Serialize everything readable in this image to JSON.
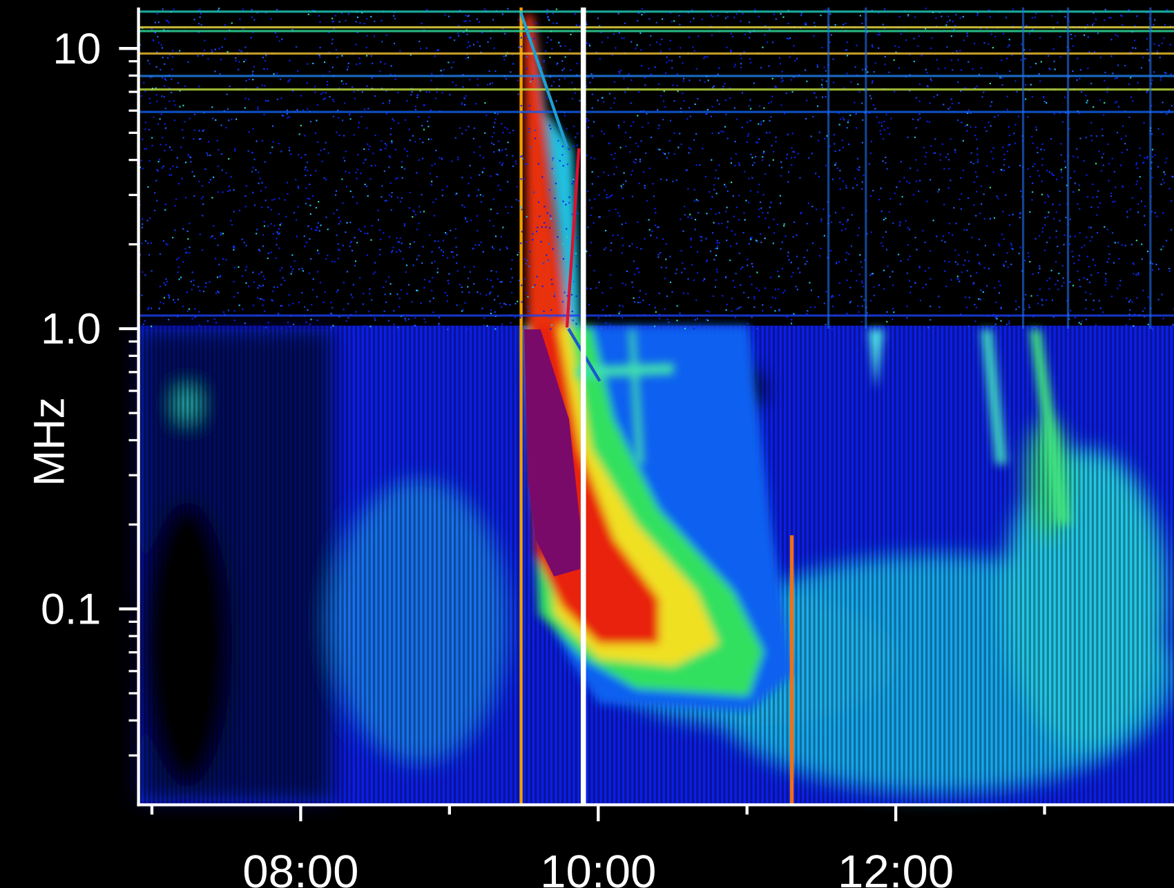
{
  "chart_data": {
    "type": "spectrogram",
    "y_label": "MHz",
    "y_scale": "log",
    "xlim": [
      6.91,
      13.87
    ],
    "ylim": [
      0.02,
      14
    ],
    "xticks": [
      {
        "value": 8,
        "label": "08:00"
      },
      {
        "value": 10,
        "label": "10:00"
      },
      {
        "value": 12,
        "label": "12:00"
      }
    ],
    "xminorticks": [
      7,
      9,
      11,
      13
    ],
    "yticks": [
      {
        "value": 10,
        "label": "10"
      },
      {
        "value": 1,
        "label": "1.0"
      },
      {
        "value": 0.1,
        "label": "0.1"
      }
    ],
    "yminorticks": [
      0.03,
      0.04,
      0.05,
      0.06,
      0.07,
      0.08,
      0.09,
      0.2,
      0.3,
      0.4,
      0.5,
      0.6,
      0.7,
      0.8,
      0.9,
      2,
      3,
      4,
      5,
      6,
      7,
      8,
      9
    ],
    "vline": 9.9,
    "series": [
      {
        "color": "#1ea0d2",
        "x": [
          9.48,
          9.79
        ],
        "values": [
          13.4,
          4.45
        ]
      },
      {
        "color": "#e01030",
        "x": [
          9.79,
          9.87
        ],
        "values": [
          1.01,
          4.4
        ]
      },
      {
        "color": "#1a5ac8",
        "x": [
          9.8,
          10.01
        ],
        "values": [
          1.0,
          0.65
        ]
      }
    ]
  }
}
